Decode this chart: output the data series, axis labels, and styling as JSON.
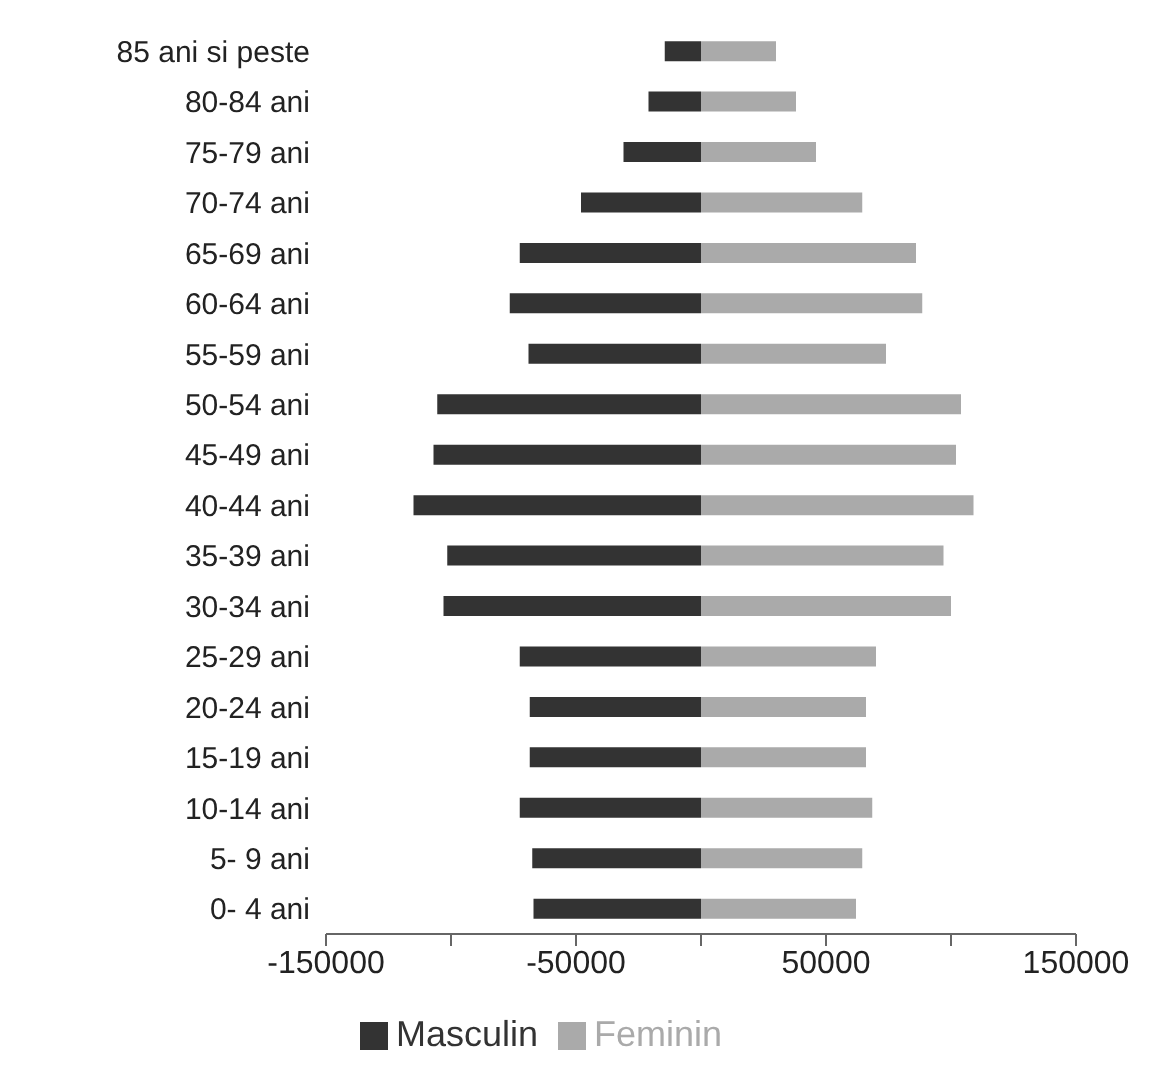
{
  "chart_data": {
    "type": "bar",
    "orientation": "horizontal",
    "categories": [
      "85 ani si peste",
      "80-84 ani",
      "75-79 ani",
      "70-74 ani",
      "65-69 ani",
      "60-64 ani",
      "55-59 ani",
      "50-54 ani",
      "45-49 ani",
      "40-44 ani",
      "35-39 ani",
      "30-34 ani",
      "25-29 ani",
      "20-24 ani",
      "15-19 ani",
      "10-14 ani",
      "5- 9 ani",
      "0- 4 ani"
    ],
    "series": [
      {
        "name": "Masculin",
        "color": "#333333",
        "values": [
          -14500,
          -21000,
          -31000,
          -48000,
          -72500,
          -76500,
          -69000,
          -105500,
          -107000,
          -115000,
          -101500,
          -103000,
          -72500,
          -68500,
          -68500,
          -72500,
          -67500,
          -67000
        ]
      },
      {
        "name": "Feminin",
        "color": "#aaaaaa",
        "values": [
          30000,
          38000,
          46000,
          64500,
          86000,
          88500,
          74000,
          104000,
          102000,
          109000,
          97000,
          100000,
          70000,
          66000,
          66000,
          68500,
          64500,
          62000
        ]
      }
    ],
    "xlim": [
      -150000,
      150000
    ],
    "xticks": [
      -150000,
      {
        "value": -100000,
        "label": null
      },
      -50000,
      {
        "value": 0,
        "label": null
      },
      50000,
      {
        "value": 100000,
        "label": null
      },
      150000
    ],
    "stacked": true,
    "grid": false,
    "legend": "bottom"
  }
}
